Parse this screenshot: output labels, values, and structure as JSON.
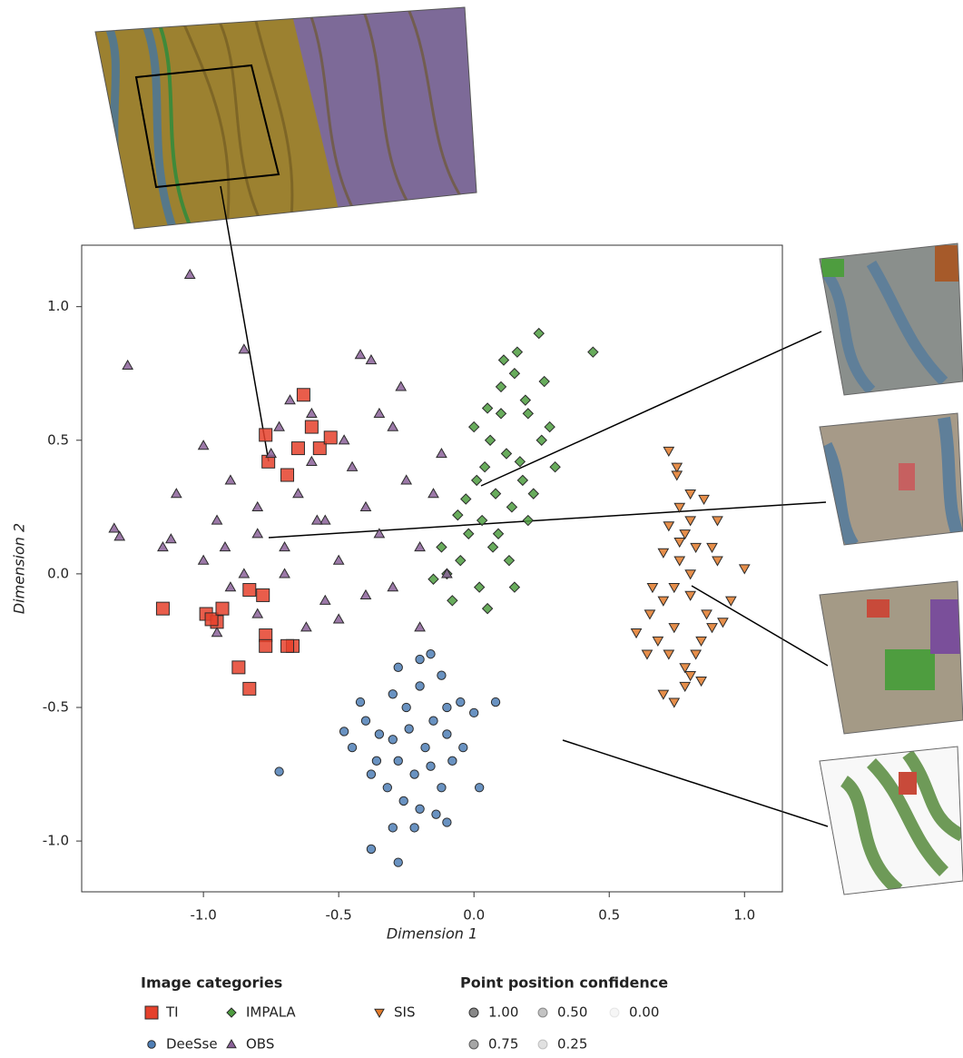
{
  "chart_data": {
    "type": "scatter",
    "xlabel": "Dimension 1",
    "ylabel": "Dimension 2",
    "xlim": [
      -1.45,
      1.14
    ],
    "ylim": [
      -1.19,
      1.23
    ],
    "xticks": [
      {
        "value": -1,
        "label": "-1.0"
      },
      {
        "value": -0.5,
        "label": "-0.5"
      },
      {
        "value": 0,
        "label": "0.0"
      },
      {
        "value": 0.5,
        "label": "0.5"
      },
      {
        "value": 1,
        "label": "1.0"
      }
    ],
    "yticks": [
      {
        "value": -1,
        "label": "-1.0"
      },
      {
        "value": -0.5,
        "label": "-0.5"
      },
      {
        "value": 0,
        "label": "0.0"
      },
      {
        "value": 0.5,
        "label": "0.5"
      },
      {
        "value": 1,
        "label": "1.0"
      }
    ],
    "grid": false,
    "legend_title": "Image categories",
    "series": [
      {
        "name": "TI",
        "color": "#e5412c",
        "marker": "square",
        "x": [
          -0.77,
          -0.76,
          -0.63,
          -0.6,
          -0.65,
          -0.57,
          -0.53,
          -0.69,
          -1.15,
          -0.99,
          -0.95,
          -0.97,
          -0.93,
          -0.83,
          -0.78,
          -0.77,
          -0.77,
          -0.67,
          -0.87,
          -0.83,
          -0.69
        ],
        "values": [
          0.52,
          0.42,
          0.67,
          0.55,
          0.47,
          0.47,
          0.51,
          0.37,
          -0.13,
          -0.15,
          -0.18,
          -0.17,
          -0.13,
          -0.06,
          -0.08,
          -0.23,
          -0.27,
          -0.27,
          -0.35,
          -0.43,
          -0.27
        ]
      },
      {
        "name": "DeeSse",
        "color": "#4f7fb6",
        "marker": "circle",
        "x": [
          -0.3,
          -0.25,
          -0.2,
          -0.15,
          -0.1,
          -0.05,
          0.0,
          -0.35,
          -0.4,
          -0.45,
          -0.28,
          -0.22,
          -0.18,
          -0.12,
          -0.08,
          -0.32,
          -0.38,
          -0.26,
          -0.2,
          -0.14,
          -0.3,
          -0.24,
          -0.16,
          -0.1,
          -0.04,
          -0.36,
          -0.42,
          -0.28,
          -0.2,
          -0.12,
          -0.48,
          -0.72,
          -0.38,
          -0.28,
          -0.22,
          -0.1,
          0.08,
          -0.3,
          -0.16,
          0.02
        ],
        "values": [
          -0.45,
          -0.5,
          -0.42,
          -0.55,
          -0.6,
          -0.48,
          -0.52,
          -0.6,
          -0.55,
          -0.65,
          -0.7,
          -0.75,
          -0.65,
          -0.8,
          -0.7,
          -0.8,
          -0.75,
          -0.85,
          -0.88,
          -0.9,
          -0.62,
          -0.58,
          -0.72,
          -0.5,
          -0.65,
          -0.7,
          -0.48,
          -0.35,
          -0.32,
          -0.38,
          -0.59,
          -0.74,
          -1.03,
          -1.08,
          -0.95,
          -0.93,
          -0.48,
          -0.95,
          -0.3,
          -0.8
        ]
      },
      {
        "name": "IMPALA",
        "color": "#4e9d3f",
        "marker": "diamond",
        "x": [
          0.0,
          0.05,
          0.1,
          0.15,
          0.2,
          0.25,
          0.3,
          0.12,
          0.18,
          0.08,
          0.03,
          -0.02,
          -0.05,
          -0.1,
          -0.08,
          0.02,
          0.07,
          0.14,
          0.22,
          0.28,
          0.11,
          0.16,
          0.04,
          -0.03,
          0.09,
          0.19,
          0.24,
          0.06,
          -0.12,
          0.13,
          0.2,
          0.01,
          -0.06,
          0.17,
          0.1,
          0.26,
          0.44,
          0.15,
          0.05,
          -0.15
        ],
        "values": [
          0.55,
          0.62,
          0.7,
          0.75,
          0.6,
          0.5,
          0.4,
          0.45,
          0.35,
          0.3,
          0.2,
          0.15,
          0.05,
          0.0,
          -0.1,
          -0.05,
          0.1,
          0.25,
          0.3,
          0.55,
          0.8,
          0.83,
          0.4,
          0.28,
          0.15,
          0.65,
          0.9,
          0.5,
          0.1,
          0.05,
          0.2,
          0.35,
          0.22,
          0.42,
          0.6,
          0.72,
          0.83,
          -0.05,
          -0.13,
          -0.02
        ]
      },
      {
        "name": "OBS",
        "color": "#8b6199",
        "marker": "triangle-up",
        "x": [
          -1.05,
          -1.28,
          -1.33,
          -1.31,
          -1.15,
          -1.1,
          -1.0,
          -0.95,
          -0.9,
          -0.85,
          -0.8,
          -0.75,
          -0.7,
          -0.65,
          -0.6,
          -0.55,
          -0.5,
          -0.45,
          -0.4,
          -0.35,
          -0.3,
          -0.25,
          -0.2,
          -0.15,
          -0.1,
          -0.42,
          -0.38,
          -0.27,
          -0.55,
          -0.62,
          -0.7,
          -0.8,
          -0.9,
          -1.0,
          -1.12,
          -0.95,
          -0.85,
          -0.72,
          -0.6,
          -0.5,
          -0.4,
          -0.3,
          -0.2,
          -0.12,
          -0.8,
          -0.68,
          -0.48,
          -0.35,
          -0.58,
          -0.92
        ],
        "values": [
          1.12,
          0.78,
          0.17,
          0.14,
          0.1,
          0.3,
          0.48,
          0.2,
          0.35,
          0.0,
          0.25,
          0.45,
          0.1,
          0.3,
          0.6,
          0.2,
          0.05,
          0.4,
          0.25,
          0.15,
          0.55,
          0.35,
          0.1,
          0.3,
          0.0,
          0.82,
          0.8,
          0.7,
          -0.1,
          -0.2,
          0.0,
          -0.15,
          -0.05,
          0.05,
          0.13,
          -0.22,
          0.84,
          0.55,
          0.42,
          -0.17,
          -0.08,
          -0.05,
          -0.2,
          0.45,
          0.15,
          0.65,
          0.5,
          0.6,
          0.2,
          0.1
        ]
      },
      {
        "name": "SIS",
        "color": "#e27a2a",
        "marker": "triangle-down",
        "x": [
          0.72,
          0.75,
          0.8,
          0.85,
          0.9,
          0.78,
          0.82,
          0.76,
          0.8,
          0.74,
          0.7,
          0.65,
          0.6,
          0.68,
          0.72,
          0.78,
          0.84,
          0.88,
          0.95,
          1.0,
          0.8,
          0.76,
          0.72,
          0.66,
          0.7,
          0.74,
          0.78,
          0.82,
          0.86,
          0.9,
          0.92,
          0.84,
          0.8,
          0.76,
          0.7,
          0.74,
          0.64,
          0.75,
          0.88,
          0.8
        ],
        "values": [
          0.46,
          0.4,
          0.3,
          0.28,
          0.2,
          0.15,
          0.1,
          0.05,
          0.0,
          -0.05,
          -0.1,
          -0.15,
          -0.22,
          -0.25,
          -0.3,
          -0.35,
          -0.4,
          -0.2,
          -0.1,
          0.02,
          0.2,
          0.25,
          0.18,
          -0.05,
          -0.45,
          -0.48,
          -0.42,
          -0.3,
          -0.15,
          0.05,
          -0.18,
          -0.25,
          -0.08,
          0.12,
          0.08,
          -0.2,
          -0.3,
          0.37,
          0.1,
          -0.38
        ]
      }
    ],
    "confidence_legend": {
      "title": "Point position confidence",
      "levels": [
        {
          "value": 1,
          "label": "1.00"
        },
        {
          "value": 0.75,
          "label": "0.75"
        },
        {
          "value": 0.5,
          "label": "0.50"
        },
        {
          "value": 0.25,
          "label": "0.25"
        },
        {
          "value": 0,
          "label": "0.00"
        }
      ]
    }
  }
}
